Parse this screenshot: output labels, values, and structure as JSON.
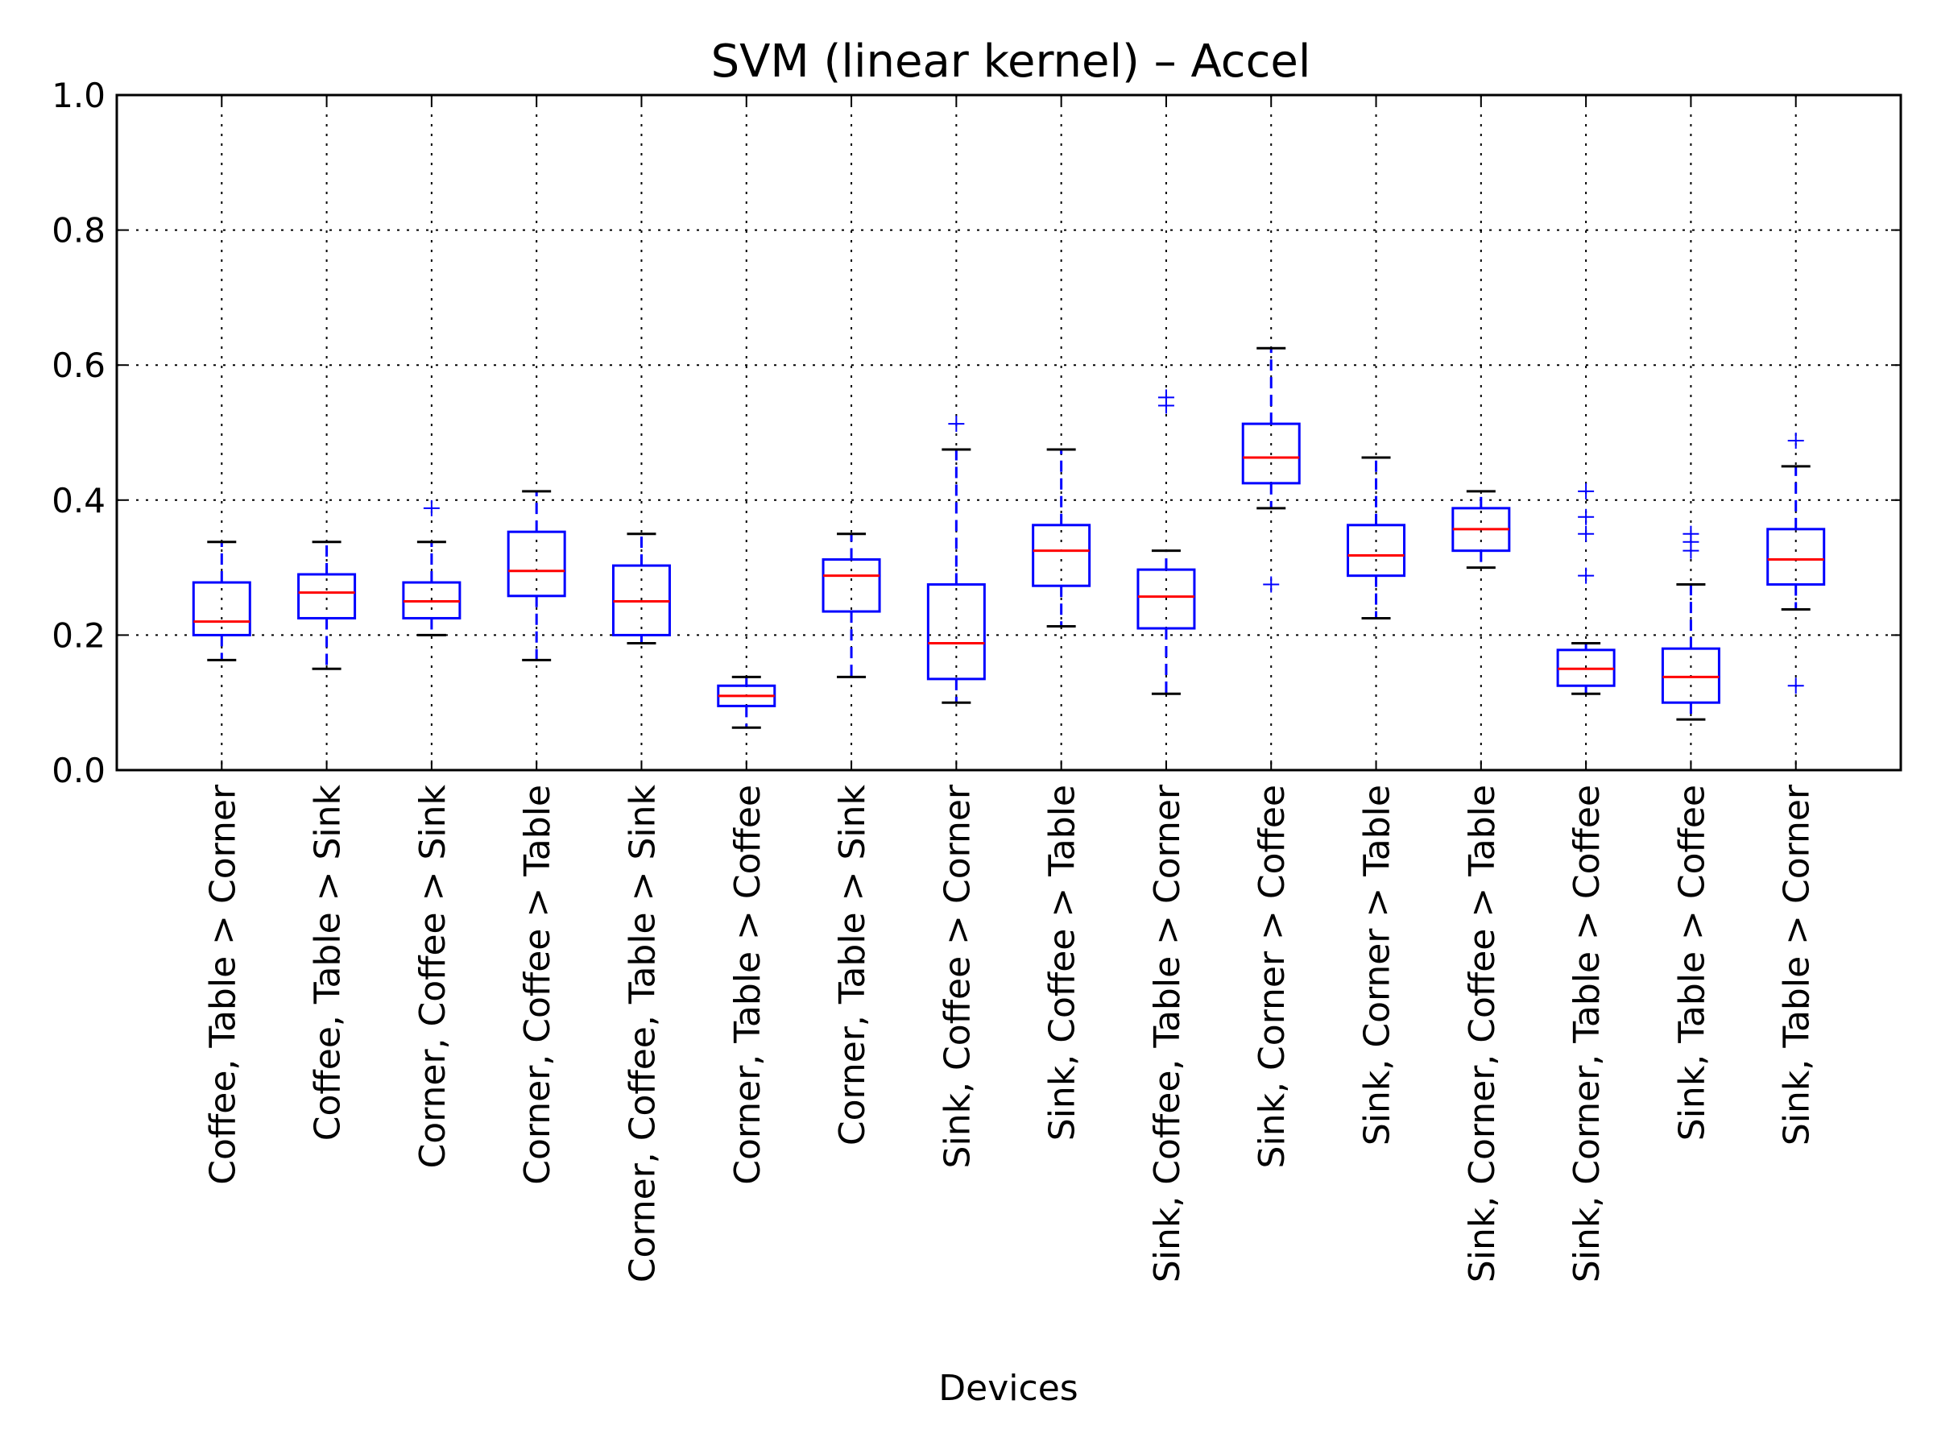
{
  "chart_data": {
    "type": "box",
    "title": "SVM (linear kernel) – Accel",
    "xlabel": "Devices",
    "ylabel": "",
    "ylim": [
      0.0,
      1.0
    ],
    "yticks": [
      "0.0",
      "0.2",
      "0.4",
      "0.6",
      "0.8",
      "1.0"
    ],
    "grid": true,
    "colors": {
      "box": "#0000ff",
      "median": "#ff0000",
      "whisker_cap": "#000000",
      "outlier": "#0000ff"
    },
    "categories": [
      "Coffee, Table > Corner",
      "Coffee, Table > Sink",
      "Corner, Coffee > Sink",
      "Corner, Coffee > Table",
      "Corner, Coffee, Table > Sink",
      "Corner, Table > Coffee",
      "Corner, Table > Sink",
      "Sink, Coffee > Corner",
      "Sink, Coffee > Table",
      "Sink, Coffee, Table > Corner",
      "Sink, Corner > Coffee",
      "Sink, Corner > Table",
      "Sink, Corner, Coffee > Table",
      "Sink, Corner, Table > Coffee",
      "Sink, Table > Coffee",
      "Sink, Table > Corner"
    ],
    "boxes": [
      {
        "whislo": 0.163,
        "q1": 0.2,
        "med": 0.22,
        "q3": 0.278,
        "whishi": 0.338,
        "fliers": []
      },
      {
        "whislo": 0.15,
        "q1": 0.225,
        "med": 0.263,
        "q3": 0.29,
        "whishi": 0.338,
        "fliers": []
      },
      {
        "whislo": 0.2,
        "q1": 0.225,
        "med": 0.25,
        "q3": 0.278,
        "whishi": 0.338,
        "fliers": [
          0.388
        ]
      },
      {
        "whislo": 0.163,
        "q1": 0.258,
        "med": 0.295,
        "q3": 0.353,
        "whishi": 0.413,
        "fliers": []
      },
      {
        "whislo": 0.188,
        "q1": 0.2,
        "med": 0.25,
        "q3": 0.303,
        "whishi": 0.35,
        "fliers": []
      },
      {
        "whislo": 0.063,
        "q1": 0.095,
        "med": 0.11,
        "q3": 0.125,
        "whishi": 0.138,
        "fliers": []
      },
      {
        "whislo": 0.138,
        "q1": 0.235,
        "med": 0.288,
        "q3": 0.312,
        "whishi": 0.35,
        "fliers": []
      },
      {
        "whislo": 0.1,
        "q1": 0.135,
        "med": 0.188,
        "q3": 0.275,
        "whishi": 0.475,
        "fliers": [
          0.513
        ]
      },
      {
        "whislo": 0.213,
        "q1": 0.273,
        "med": 0.325,
        "q3": 0.363,
        "whishi": 0.475,
        "fliers": []
      },
      {
        "whislo": 0.113,
        "q1": 0.21,
        "med": 0.257,
        "q3": 0.297,
        "whishi": 0.325,
        "fliers": [
          0.54,
          0.552
        ]
      },
      {
        "whislo": 0.388,
        "q1": 0.425,
        "med": 0.463,
        "q3": 0.513,
        "whishi": 0.625,
        "fliers": [
          0.275
        ]
      },
      {
        "whislo": 0.225,
        "q1": 0.288,
        "med": 0.318,
        "q3": 0.363,
        "whishi": 0.463,
        "fliers": []
      },
      {
        "whislo": 0.3,
        "q1": 0.325,
        "med": 0.357,
        "q3": 0.388,
        "whishi": 0.413,
        "fliers": []
      },
      {
        "whislo": 0.113,
        "q1": 0.125,
        "med": 0.15,
        "q3": 0.178,
        "whishi": 0.188,
        "fliers": [
          0.288,
          0.35,
          0.375,
          0.413
        ]
      },
      {
        "whislo": 0.075,
        "q1": 0.1,
        "med": 0.138,
        "q3": 0.18,
        "whishi": 0.275,
        "fliers": [
          0.325,
          0.338,
          0.35
        ]
      },
      {
        "whislo": 0.238,
        "q1": 0.275,
        "med": 0.312,
        "q3": 0.357,
        "whishi": 0.45,
        "fliers": [
          0.125,
          0.488
        ]
      }
    ]
  }
}
